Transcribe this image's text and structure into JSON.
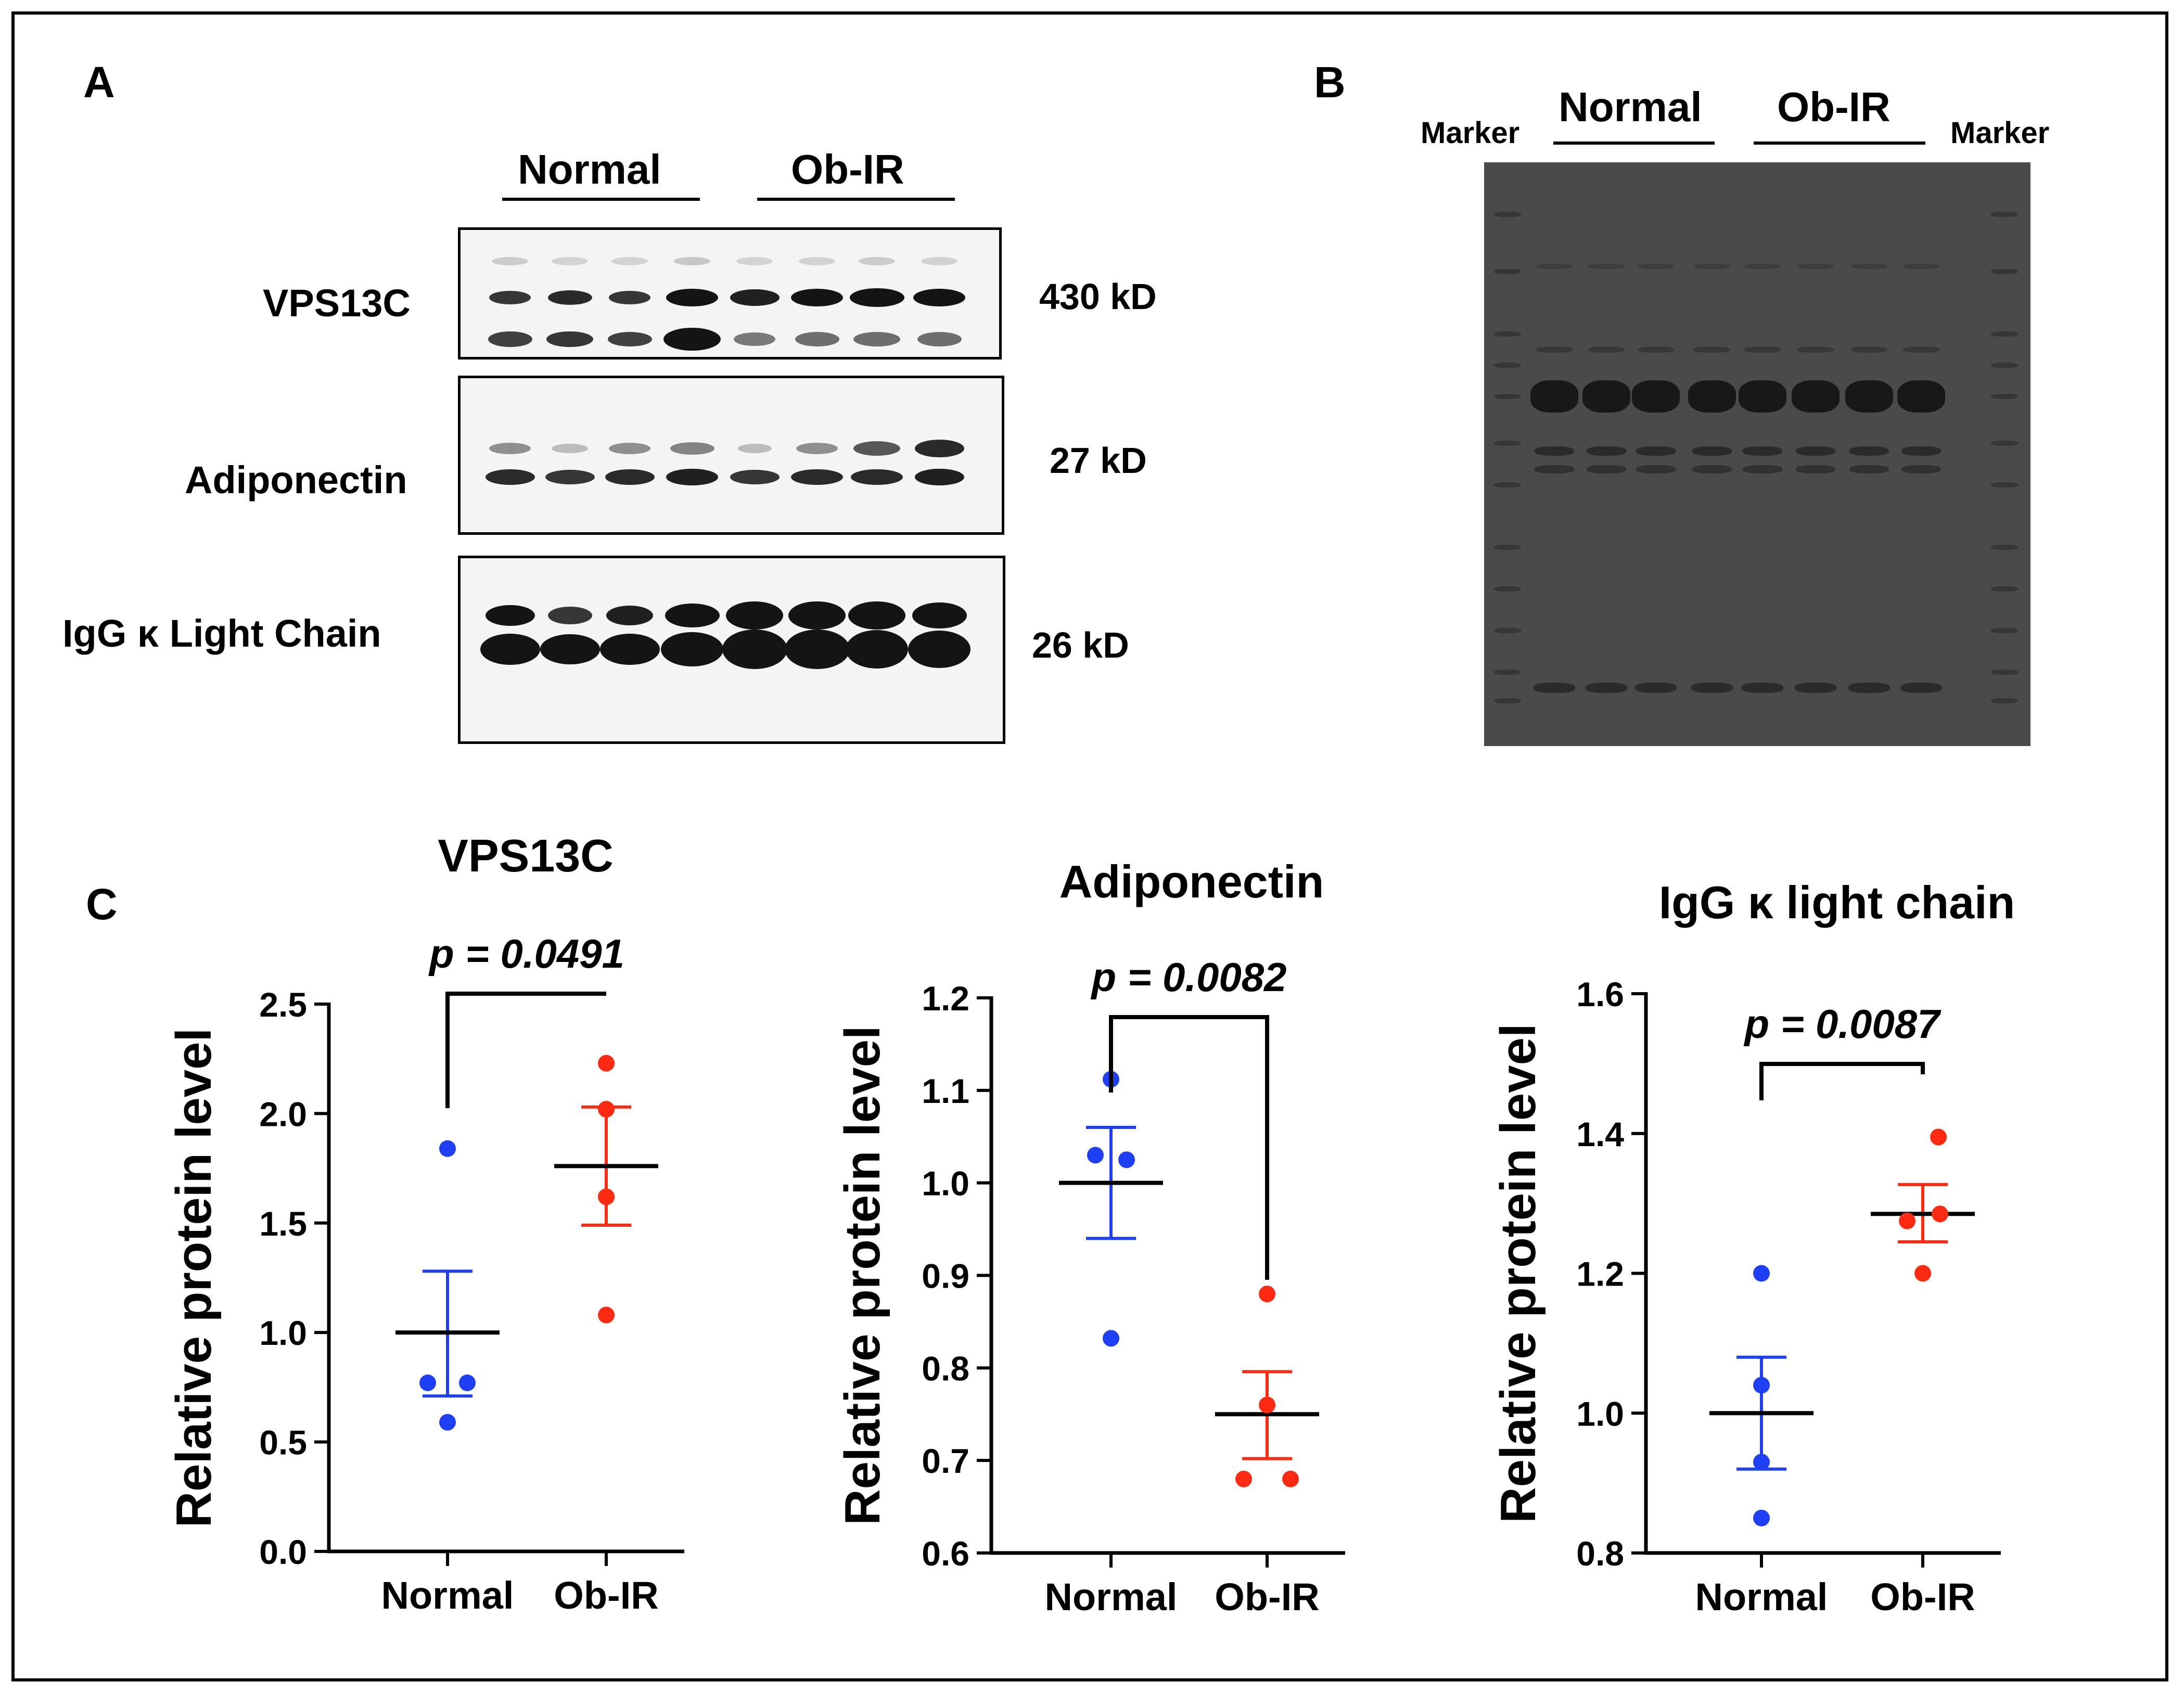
{
  "panels": {
    "a": "A",
    "b": "B",
    "c": "C"
  },
  "panel_a": {
    "group_normal": "Normal",
    "group_obir": "Ob-IR",
    "blots": [
      {
        "protein": "VPS13C",
        "mw": "430 kD"
      },
      {
        "protein": "Adiponectin",
        "mw": "27 kD"
      },
      {
        "protein": "IgG κ Light Chain",
        "mw": "26 kD"
      }
    ]
  },
  "panel_b": {
    "marker_left": "Marker",
    "marker_right": "Marker",
    "group_normal": "Normal",
    "group_obir": "Ob-IR"
  },
  "colors": {
    "normal": "#1f3ff5",
    "obir": "#ff2a12",
    "ink": "#000000"
  },
  "chart_data": [
    {
      "type": "scatter",
      "title": "VPS13C",
      "ylabel": "Relative protein level",
      "xlabel": "",
      "categories": [
        "Normal",
        "Ob-IR"
      ],
      "ylim": [
        0.0,
        2.5
      ],
      "yticks": [
        "0.0",
        "0.5",
        "1.0",
        "1.5",
        "2.0",
        "2.5"
      ],
      "p_value": "p = 0.0491",
      "series": [
        {
          "name": "Normal",
          "points": [
            1.84,
            0.77,
            0.77,
            0.59
          ],
          "mean": 1.0,
          "sem_low": 0.71,
          "sem_high": 1.28
        },
        {
          "name": "Ob-IR",
          "points": [
            2.23,
            2.02,
            1.62,
            1.08
          ],
          "mean": 1.76,
          "sem_low": 1.49,
          "sem_high": 2.03
        }
      ]
    },
    {
      "type": "scatter",
      "title": "Adiponectin",
      "ylabel": "Relative protein level",
      "xlabel": "",
      "categories": [
        "Normal",
        "Ob-IR"
      ],
      "ylim": [
        0.6,
        1.2
      ],
      "yticks": [
        "0.6",
        "0.7",
        "0.8",
        "0.9",
        "1.0",
        "1.1",
        "1.2"
      ],
      "p_value": "p = 0.0082",
      "series": [
        {
          "name": "Normal",
          "points": [
            1.112,
            1.03,
            1.025,
            0.832
          ],
          "mean": 1.0,
          "sem_low": 0.94,
          "sem_high": 1.06
        },
        {
          "name": "Ob-IR",
          "points": [
            0.88,
            0.76,
            0.68,
            0.68
          ],
          "mean": 0.75,
          "sem_low": 0.702,
          "sem_high": 0.796
        }
      ]
    },
    {
      "type": "scatter",
      "title": "IgG κ light chain",
      "ylabel": "Relative protein level",
      "xlabel": "",
      "categories": [
        "Normal",
        "Ob-IR"
      ],
      "ylim": [
        0.8,
        1.6
      ],
      "yticks": [
        "0.8",
        "1.0",
        "1.2",
        "1.4",
        "1.6"
      ],
      "p_value": "p = 0.0087",
      "series": [
        {
          "name": "Normal",
          "points": [
            1.2,
            1.04,
            0.93,
            0.85
          ],
          "mean": 1.0,
          "sem_low": 0.92,
          "sem_high": 1.08
        },
        {
          "name": "Ob-IR",
          "points": [
            1.395,
            1.285,
            1.275,
            1.2
          ],
          "mean": 1.285,
          "sem_low": 1.245,
          "sem_high": 1.327
        }
      ]
    }
  ]
}
